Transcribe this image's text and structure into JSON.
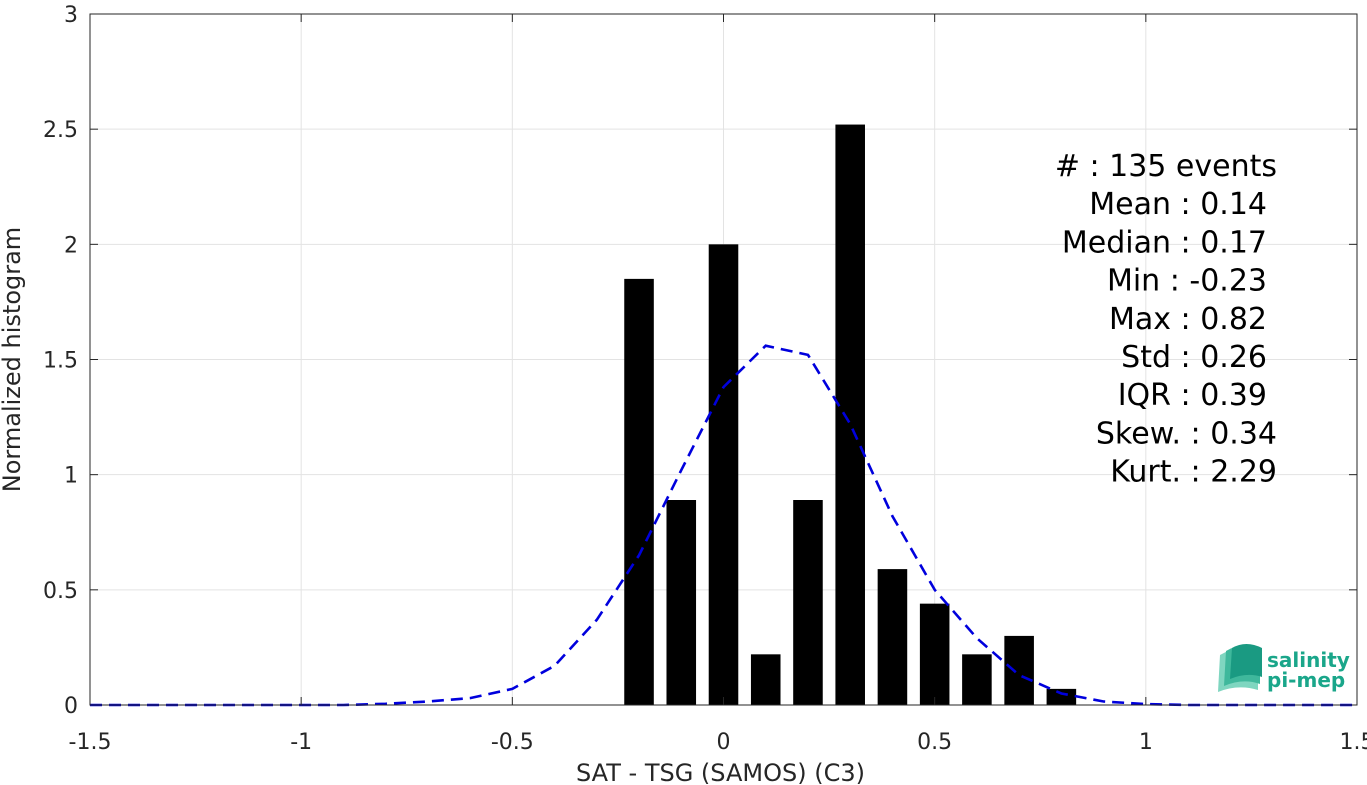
{
  "chart_data": {
    "type": "bar",
    "xlabel": "SAT - TSG (SAMOS) (C3)",
    "ylabel": "Normalized histogram",
    "xlim": [
      -1.5,
      1.5
    ],
    "ylim": [
      0,
      3
    ],
    "xticks": [
      -1.5,
      -1,
      -0.5,
      0,
      0.5,
      1,
      1.5
    ],
    "xtick_labels": [
      "-1.5",
      "-1",
      "-0.5",
      "0",
      "0.5",
      "1",
      "1.5"
    ],
    "yticks": [
      0,
      0.5,
      1,
      1.5,
      2,
      2.5,
      3
    ],
    "ytick_labels": [
      "0",
      "0.5",
      "1",
      "1.5",
      "2",
      "2.5",
      "3"
    ],
    "grid": true,
    "bar_color": "#000000",
    "bar_width": 0.07,
    "bars": [
      {
        "x": -0.2,
        "y": 1.85
      },
      {
        "x": -0.1,
        "y": 0.89
      },
      {
        "x": 0.0,
        "y": 2.0
      },
      {
        "x": 0.1,
        "y": 0.22
      },
      {
        "x": 0.2,
        "y": 0.89
      },
      {
        "x": 0.3,
        "y": 2.52
      },
      {
        "x": 0.4,
        "y": 0.59
      },
      {
        "x": 0.5,
        "y": 0.44
      },
      {
        "x": 0.6,
        "y": 0.22
      },
      {
        "x": 0.7,
        "y": 0.3
      },
      {
        "x": 0.8,
        "y": 0.07
      }
    ],
    "fit_curve": {
      "style": "dashed",
      "color": "#0000dd",
      "x": [
        -1.5,
        -1.4,
        -1.3,
        -1.2,
        -1.1,
        -1.0,
        -0.9,
        -0.8,
        -0.7,
        -0.6,
        -0.5,
        -0.4,
        -0.3,
        -0.2,
        -0.1,
        0.0,
        0.1,
        0.2,
        0.3,
        0.4,
        0.5,
        0.6,
        0.7,
        0.8,
        0.9,
        1.0,
        1.1,
        1.2,
        1.3,
        1.4,
        1.5
      ],
      "y": [
        0,
        0,
        0,
        0,
        0,
        0,
        0,
        0.005,
        0.015,
        0.03,
        0.07,
        0.17,
        0.37,
        0.65,
        1.02,
        1.38,
        1.56,
        1.52,
        1.22,
        0.82,
        0.5,
        0.29,
        0.13,
        0.05,
        0.015,
        0.004,
        0,
        0,
        0,
        0,
        0
      ]
    },
    "annotations": [
      "#  : 135 events",
      "Mean : 0.14",
      "Median : 0.17",
      "Min : -0.23",
      "Max : 0.82",
      "Std : 0.26",
      "IQR : 0.39",
      "Skew. : 0.34",
      "Kurt. : 2.29"
    ]
  },
  "logo": {
    "line1": "salinity",
    "line2": "pi-mep",
    "color": "#1aa68a"
  }
}
